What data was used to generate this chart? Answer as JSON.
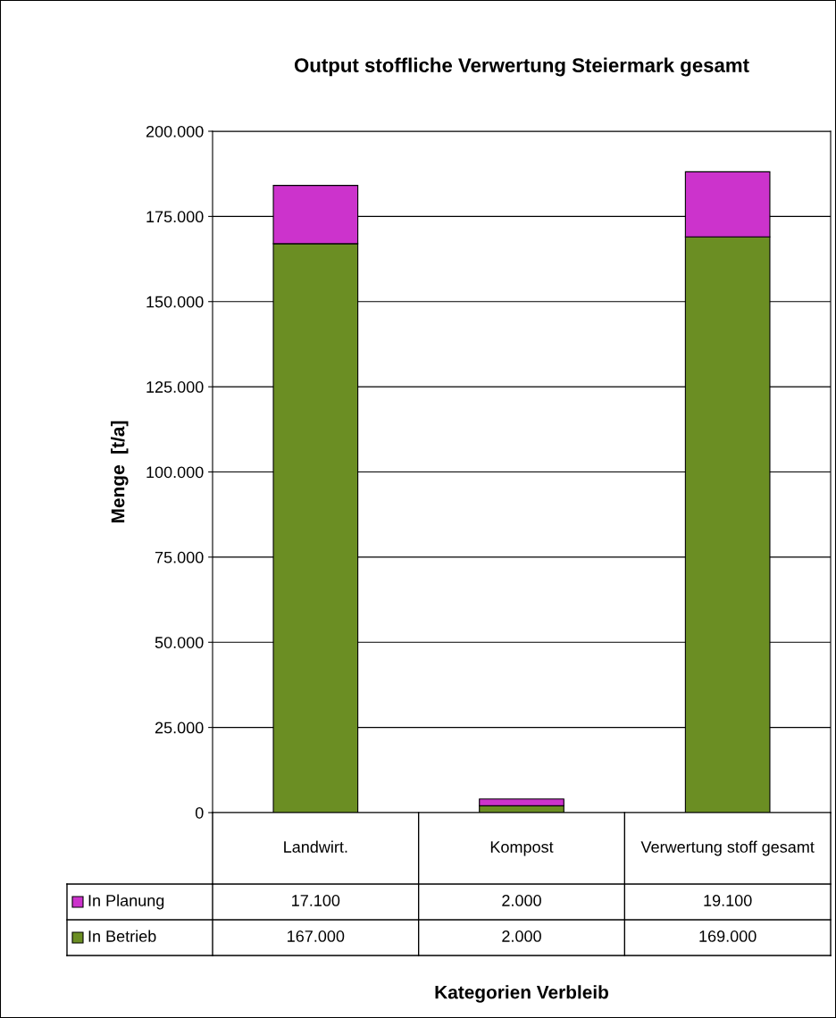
{
  "chart_data": {
    "type": "bar",
    "title": "Output stoffliche Verwertung Steiermark gesamt",
    "annotations": [
      "Kategorien Verbleib"
    ],
    "ylabel": "Menge  [t/a]",
    "categories": [
      "Landwirt.",
      "Kompost",
      "Verwertung stoff gesamt"
    ],
    "series": [
      {
        "name": "In Betrieb",
        "color": "#6b8e23",
        "values": [
          167000,
          2000,
          169000
        ],
        "value_labels": [
          "167.000",
          "2.000",
          "169.000"
        ]
      },
      {
        "name": "In Planung",
        "color": "#cc33cc",
        "values": [
          17100,
          2000,
          19100
        ],
        "value_labels": [
          "17.100",
          "2.000",
          "19.100"
        ]
      }
    ],
    "stacked": true,
    "ylim": [
      0,
      200000
    ],
    "yticks": [
      0,
      {
        "value": 25000,
        "label": "25.000"
      },
      {
        "value": 50000,
        "label": "50.000"
      },
      {
        "value": 75000,
        "label": "75.000"
      },
      {
        "value": 100000,
        "label": "100.000"
      },
      {
        "value": 125000,
        "label": "125.000"
      },
      {
        "value": 150000,
        "label": "150.000"
      },
      {
        "value": 175000,
        "label": "175.000"
      },
      {
        "value": 200000,
        "label": "200.000"
      }
    ],
    "grid": "y",
    "legend": "bottom"
  }
}
